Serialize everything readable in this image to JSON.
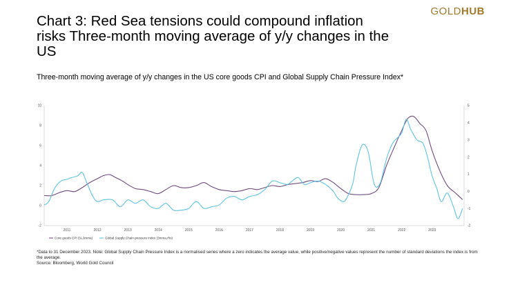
{
  "brand": {
    "gold": "GOLD",
    "hub": "HUB"
  },
  "title": "Chart 3: Red Sea tensions could compound inflation risks Three-month moving average of y/y changes in the US",
  "subtitle": "Three-month moving average of y/y changes in the US core goods CPI and Global Supply Chain Pressure Index*",
  "footnote": "*Data to 31 December 2023. Note: Global Supply Chain Pressure Index is a normalised series where a zero indicates the average value, while positive/negative values represent the number of standard deviations the index is from the average.",
  "source": "Source: Bloomberg, World Gold Council",
  "colors": {
    "cpi": "#6e4a7e",
    "gscpi": "#5ec3e6",
    "axis": "#cfcfcf",
    "brand": "#a07a2a"
  },
  "chart_data": {
    "type": "line",
    "x_ticks": [
      "2011",
      "2012",
      "2013",
      "2014",
      "2015",
      "2016",
      "2017",
      "2018",
      "2019",
      "2020",
      "2021",
      "2022",
      "2023"
    ],
    "left_axis": {
      "ticks": [
        "-2",
        "0",
        "2",
        "4",
        "6",
        "8",
        "10"
      ],
      "ylim": [
        -2,
        10
      ]
    },
    "right_axis": {
      "ticks": [
        "-2",
        "-1",
        "0",
        "1",
        "2",
        "3",
        "4",
        "5"
      ],
      "ylim": [
        -2,
        5
      ]
    },
    "xlim": [
      2010.25,
      2024.05
    ],
    "legend": [
      "Core goods CPI (%,3mma)",
      "Global Supply Chain pressure index (3mma,rhs)"
    ],
    "series": [
      {
        "name": "Core goods CPI (%,3mma)",
        "axis": "left",
        "x": [
          2010.25,
          2010.5,
          2010.75,
          2011.0,
          2011.25,
          2011.5,
          2011.75,
          2012.0,
          2012.2,
          2012.4,
          2012.6,
          2012.8,
          2013.0,
          2013.25,
          2013.5,
          2013.75,
          2014.0,
          2014.25,
          2014.5,
          2014.75,
          2015.0,
          2015.25,
          2015.5,
          2015.75,
          2016.0,
          2016.25,
          2016.5,
          2016.75,
          2017.0,
          2017.25,
          2017.5,
          2017.75,
          2018.0,
          2018.25,
          2018.5,
          2018.75,
          2019.0,
          2019.25,
          2019.5,
          2019.75,
          2020.0,
          2020.25,
          2020.5,
          2020.75,
          2021.0,
          2021.25,
          2021.5,
          2021.75,
          2022.0,
          2022.2,
          2022.4,
          2022.6,
          2022.8,
          2023.0,
          2023.25,
          2023.5,
          2023.75,
          2024.0
        ],
        "values": [
          1.0,
          1.0,
          1.3,
          1.5,
          1.4,
          1.8,
          2.3,
          2.7,
          3.0,
          3.1,
          2.8,
          2.5,
          2.1,
          1.7,
          1.6,
          1.4,
          1.2,
          1.6,
          2.0,
          1.8,
          1.8,
          2.0,
          2.3,
          1.9,
          1.6,
          1.5,
          1.4,
          1.5,
          1.7,
          1.6,
          1.8,
          2.0,
          1.9,
          2.1,
          2.2,
          2.3,
          2.5,
          2.4,
          2.7,
          2.3,
          1.7,
          1.2,
          1.1,
          1.1,
          1.2,
          1.8,
          4.0,
          5.8,
          7.5,
          8.7,
          8.9,
          8.2,
          7.5,
          5.5,
          3.5,
          2.0,
          1.3,
          0.6
        ]
      },
      {
        "name": "Global Supply Chain pressure index (3mma,rhs)",
        "axis": "right",
        "x": [
          2010.25,
          2010.4,
          2010.6,
          2010.8,
          2011.0,
          2011.15,
          2011.35,
          2011.5,
          2011.65,
          2011.85,
          2012.0,
          2012.2,
          2012.5,
          2012.75,
          2013.0,
          2013.25,
          2013.5,
          2013.75,
          2014.0,
          2014.25,
          2014.5,
          2014.75,
          2015.0,
          2015.25,
          2015.5,
          2015.75,
          2016.0,
          2016.25,
          2016.5,
          2016.75,
          2017.0,
          2017.25,
          2017.5,
          2017.75,
          2018.0,
          2018.25,
          2018.4,
          2018.6,
          2018.8,
          2019.0,
          2019.25,
          2019.5,
          2019.75,
          2019.9,
          2020.1,
          2020.25,
          2020.4,
          2020.5,
          2020.7,
          2020.9,
          2021.1,
          2021.3,
          2021.5,
          2021.7,
          2021.85,
          2022.0,
          2022.15,
          2022.3,
          2022.5,
          2022.7,
          2022.85,
          2023.0,
          2023.15,
          2023.3,
          2023.5,
          2023.7,
          2023.85,
          2024.0
        ],
        "values": [
          -0.8,
          -0.6,
          0.2,
          0.6,
          0.7,
          0.8,
          0.9,
          1.1,
          0.5,
          -0.3,
          -0.6,
          -0.5,
          -0.5,
          -0.9,
          -0.5,
          -0.7,
          -0.5,
          -0.9,
          -1.0,
          -0.7,
          -1.1,
          -1.1,
          -1.0,
          -0.6,
          -1.0,
          -0.9,
          -0.8,
          -0.4,
          -0.3,
          -0.5,
          -0.3,
          -0.2,
          0.1,
          0.6,
          0.5,
          0.4,
          0.6,
          0.8,
          0.4,
          0.5,
          0.6,
          0.4,
          0.0,
          -0.4,
          -0.6,
          -0.2,
          0.5,
          1.5,
          2.7,
          2.3,
          0.4,
          0.5,
          1.9,
          2.8,
          3.1,
          3.4,
          4.2,
          3.6,
          3.0,
          2.8,
          2.0,
          0.9,
          0.2,
          -0.6,
          -0.1,
          -0.9,
          -1.6,
          -1.0
        ]
      }
    ]
  }
}
